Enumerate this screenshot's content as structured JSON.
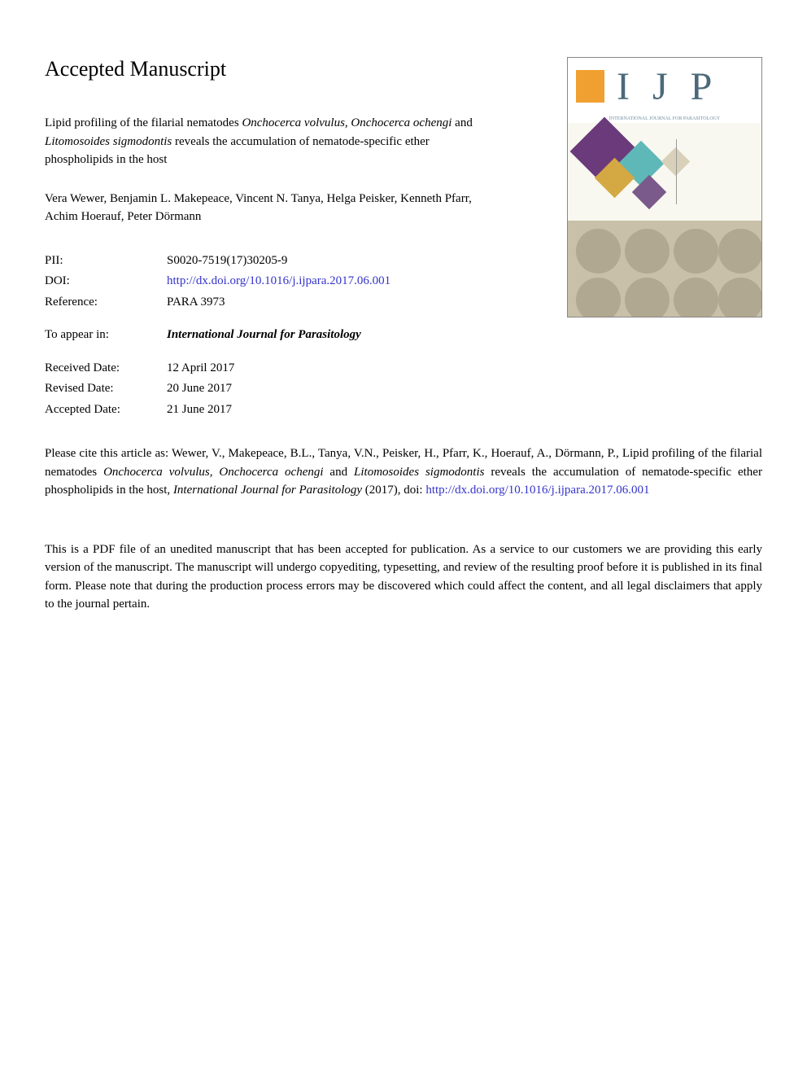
{
  "heading": "Accepted Manuscript",
  "title": {
    "prefix": "Lipid profiling of the filarial nematodes ",
    "italic1": "Onchocerca volvulus, Onchocerca ochengi",
    "mid1": " and ",
    "italic2": "Litomosoides sigmodontis",
    "suffix": " reveals the accumulation of nematode-specific ether phospholipids in the host"
  },
  "authors": "Vera Wewer, Benjamin L. Makepeace, Vincent N. Tanya, Helga Peisker, Kenneth Pfarr, Achim Hoerauf, Peter Dörmann",
  "metadata": {
    "pii_label": "PII:",
    "pii_value": "S0020-7519(17)30205-9",
    "doi_label": "DOI:",
    "doi_value": "http://dx.doi.org/10.1016/j.ijpara.2017.06.001",
    "reference_label": "Reference:",
    "reference_value": "PARA 3973",
    "appear_label": "To appear in:",
    "appear_value": "International Journal for Parasitology",
    "received_label": "Received Date:",
    "received_value": "12 April 2017",
    "revised_label": "Revised Date:",
    "revised_value": "20 June 2017",
    "accepted_label": "Accepted Date:",
    "accepted_value": "21 June 2017"
  },
  "journal_cover": {
    "acronym": "I J P",
    "subtitle": "INTERNATIONAL JOURNAL FOR PARASITOLOGY"
  },
  "citation": {
    "prefix": "Please cite this article as: Wewer, V., Makepeace, B.L., Tanya, V.N., Peisker, H., Pfarr, K., Hoerauf, A., Dörmann, P., Lipid profiling of the filarial nematodes ",
    "italic1": "Onchocerca volvulus, Onchocerca ochengi",
    "mid1": " and ",
    "italic2": "Litomosoides sigmodontis",
    "mid2": " reveals the accumulation of nematode-specific ether phospholipids in the host, ",
    "italic3": "International Journal for Parasitology",
    "mid3": " (2017), doi: ",
    "doi_link": "http://dx.doi.org/10.1016/j.ijpara.2017.06.001"
  },
  "disclaimer": "This is a PDF file of an unedited manuscript that has been accepted for publication. As a service to our customers we are providing this early version of the manuscript. The manuscript will undergo copyediting, typesetting, and review of the resulting proof before it is published in its final form. Please note that during the production process errors may be discovered which could affect the content, and all legal disclaimers that apply to the journal pertain.",
  "colors": {
    "link": "#3333cc",
    "text": "#000000",
    "background": "#ffffff"
  }
}
